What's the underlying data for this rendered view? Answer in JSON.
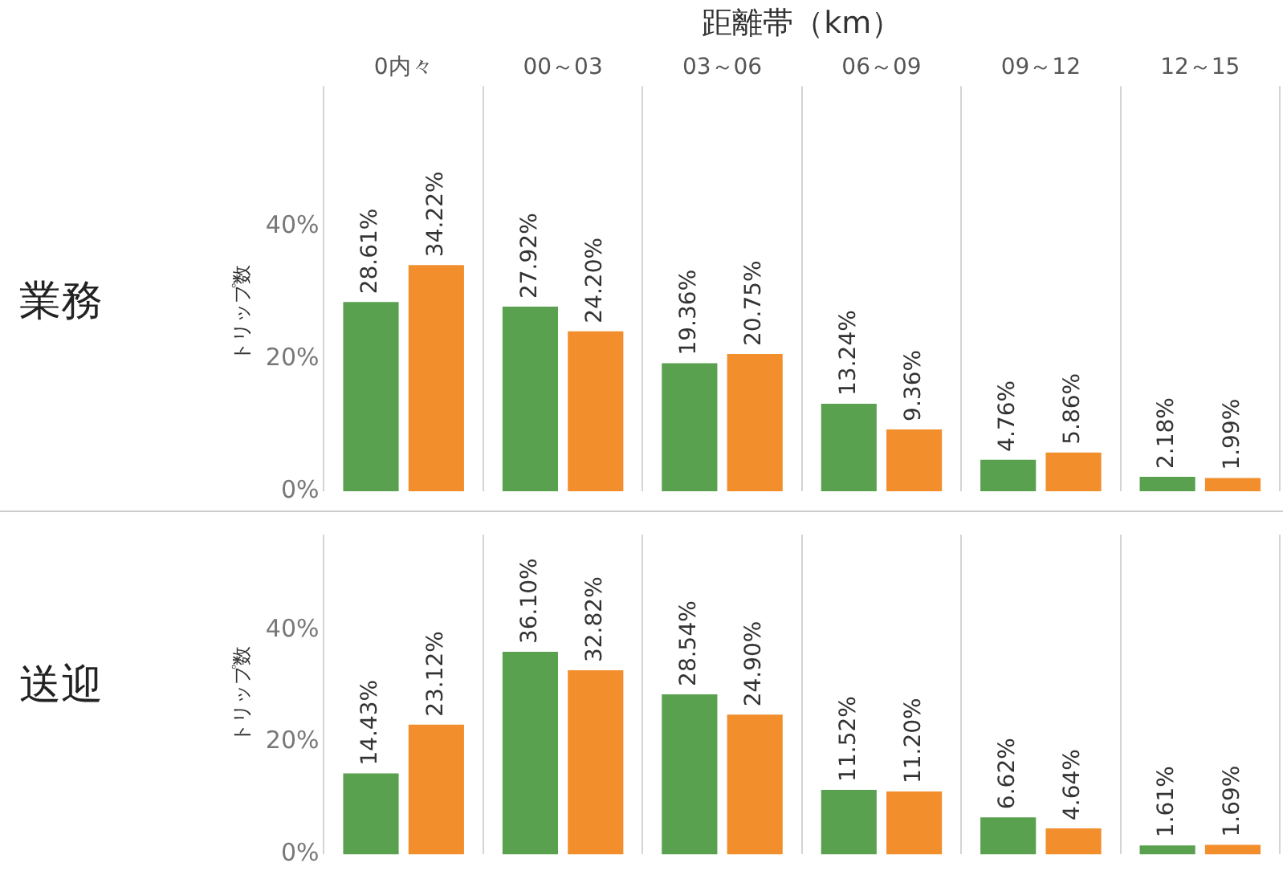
{
  "chart_data": [
    {
      "type": "bar",
      "title": "業務",
      "xlabel": "距離帯（km）",
      "ylabel": "トリップ数",
      "categories": [
        "0内々",
        "00～03",
        "03～06",
        "06～09",
        "09～12",
        "12～15"
      ],
      "series": [
        {
          "color": "#59a14f",
          "values": [
            28.61,
            27.92,
            19.36,
            13.24,
            4.76,
            2.18
          ],
          "value_labels": [
            "28.61%",
            "27.92%",
            "19.36%",
            "13.24%",
            "4.76%",
            "2.18%"
          ]
        },
        {
          "color": "#f28e2b",
          "values": [
            34.22,
            24.2,
            20.75,
            9.36,
            5.86,
            1.99
          ],
          "value_labels": [
            "34.22%",
            "24.20%",
            "20.75%",
            "9.36%",
            "5.86%",
            "1.99%"
          ]
        }
      ],
      "ylim": [
        0,
        54
      ],
      "yticks": [
        {
          "value": 0,
          "label": "0%"
        },
        {
          "value": 20,
          "label": "20%"
        },
        {
          "value": 40,
          "label": "40%"
        }
      ],
      "grid": "x",
      "legend": false
    },
    {
      "type": "bar",
      "title": "送迎",
      "ylabel": "トリップ数",
      "categories": [
        null,
        null,
        null,
        null,
        null,
        null
      ],
      "series": [
        {
          "color": "#59a14f",
          "values": [
            14.43,
            36.1,
            28.54,
            11.52,
            6.62,
            1.61
          ],
          "value_labels": [
            "14.43%",
            "36.10%",
            "28.54%",
            "11.52%",
            "6.62%",
            "1.61%"
          ]
        },
        {
          "color": "#f28e2b",
          "values": [
            23.12,
            32.82,
            24.9,
            11.2,
            4.64,
            1.69
          ],
          "value_labels": [
            "23.12%",
            "32.82%",
            "24.90%",
            "11.20%",
            "4.64%",
            "1.69%"
          ]
        }
      ],
      "ylim": [
        0,
        57
      ],
      "yticks": [
        {
          "value": 0,
          "label": "0%"
        },
        {
          "value": 20,
          "label": "20%"
        },
        {
          "value": 40,
          "label": "40%"
        }
      ],
      "grid": "x",
      "legend": false
    }
  ]
}
